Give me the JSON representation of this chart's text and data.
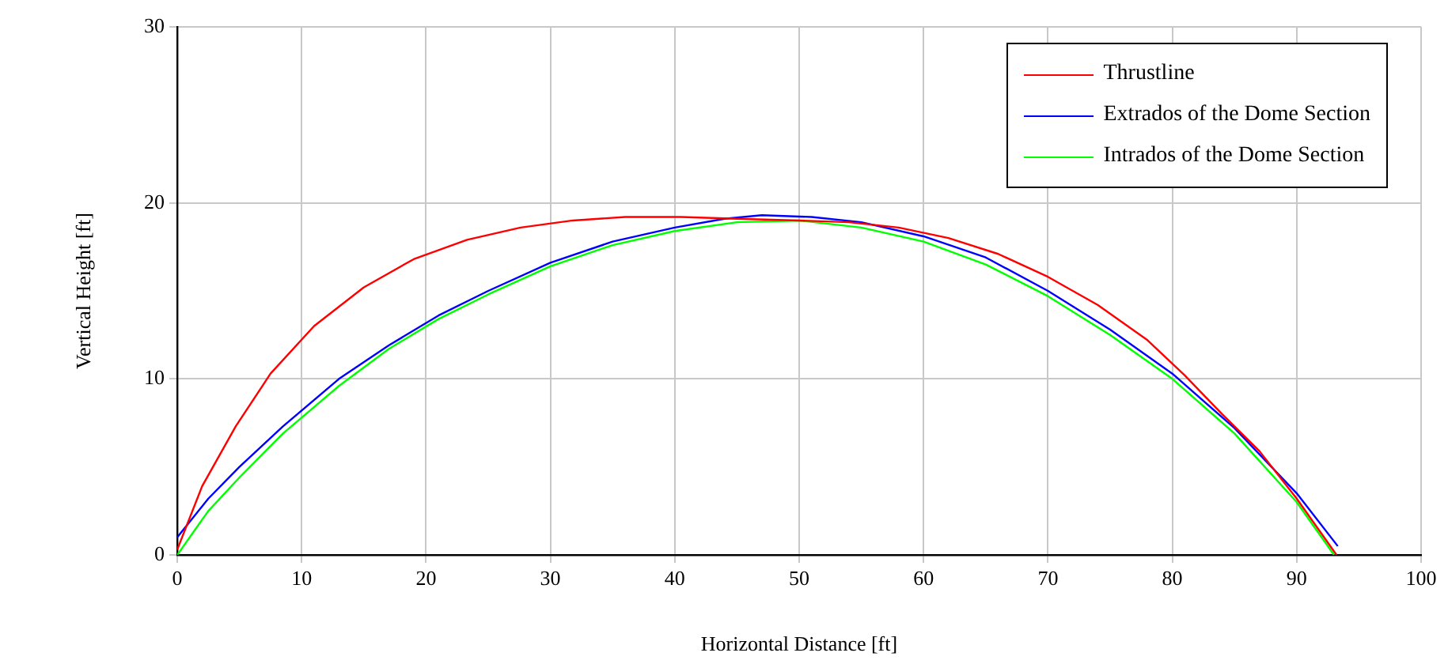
{
  "chart_data": {
    "type": "line",
    "xlabel": "Horizontal Distance [ft]",
    "ylabel": "Vertical Height [ft]",
    "xlim": [
      0,
      100
    ],
    "ylim": [
      0,
      30
    ],
    "xticks": [
      0,
      10,
      20,
      30,
      40,
      50,
      60,
      70,
      80,
      90,
      100
    ],
    "yticks": [
      0,
      10,
      20,
      30
    ],
    "grid": true,
    "legend": "top right",
    "marker": "none",
    "line_style": "solid",
    "series": [
      {
        "name": "Thrustline",
        "color": "#ff0000",
        "x": [
          0,
          2,
          4.7,
          7.5,
          11,
          15,
          19,
          23.3,
          27.6,
          31.8,
          36,
          40.5,
          45,
          50,
          54,
          58,
          62,
          66,
          70,
          74,
          78,
          81,
          84,
          87,
          90,
          93.2
        ],
        "values": [
          0.3,
          3.9,
          7.3,
          10.3,
          13,
          15.2,
          16.8,
          17.9,
          18.6,
          19,
          19.2,
          19.2,
          19.1,
          19,
          18.9,
          18.6,
          18,
          17.1,
          15.8,
          14.2,
          12.2,
          10.2,
          8,
          5.9,
          3.2,
          0
        ]
      },
      {
        "name": "Extrados of the Dome Section",
        "color": "#0000ff",
        "x": [
          0,
          2.5,
          5,
          8.5,
          13,
          17,
          21,
          25,
          30,
          35,
          40,
          44,
          47,
          51,
          55,
          60,
          65,
          70,
          75,
          80,
          85,
          90,
          93.3
        ],
        "values": [
          1,
          3.2,
          5,
          7.3,
          10,
          11.9,
          13.6,
          15,
          16.6,
          17.8,
          18.6,
          19.1,
          19.3,
          19.2,
          18.9,
          18.1,
          16.9,
          15,
          12.8,
          10.3,
          7.2,
          3.5,
          0.5
        ]
      },
      {
        "name": "Intrados of the Dome Section",
        "color": "#00ff00",
        "x": [
          0,
          2.5,
          5,
          8.5,
          13,
          17,
          21,
          25,
          30,
          35,
          40,
          45,
          50,
          55,
          60,
          65,
          70,
          75,
          80,
          85,
          90,
          93
        ],
        "values": [
          0,
          2.5,
          4.4,
          6.9,
          9.6,
          11.7,
          13.4,
          14.8,
          16.4,
          17.6,
          18.4,
          18.9,
          19,
          18.6,
          17.8,
          16.5,
          14.7,
          12.5,
          10,
          6.9,
          3,
          0
        ]
      }
    ]
  }
}
